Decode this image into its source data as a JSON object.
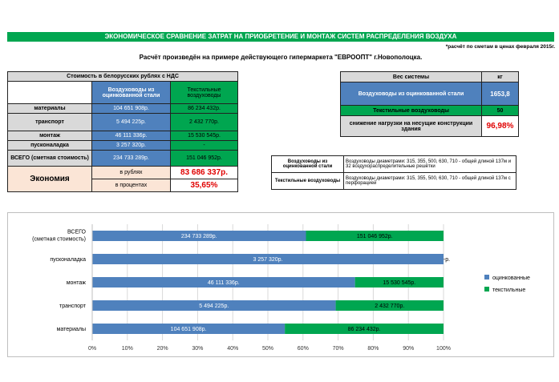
{
  "header": {
    "title": "ЭКОНОМИЧЕСКОЕ СРАВНЕНИЕ ЗАТРАТ НА ПРИОБРЕТЕНИЕ И МОНТАЖ СИСТЕМ РАСПРЕДЕЛЕНИЯ ВОЗДУХА",
    "note": "*расчёт по сметам в ценах февраля 2015г.",
    "subtitle": "Расчёт произведён на примере действующего гипермаркета \"ЕВРООПТ\" г.Новополоцка."
  },
  "cost_table": {
    "caption": "Стоимость в белорусских рублях с НДС",
    "col_galv": "Воздуховоды из оцинкованной стали",
    "col_text": "Текстильные воздуховоды",
    "rows": [
      {
        "label": "материалы",
        "galv": "104 651 908р.",
        "text": "86 234 432р."
      },
      {
        "label": "транспорт",
        "galv": "5 494 225р.",
        "text": "2 432 770р."
      },
      {
        "label": "монтаж",
        "galv": "46 111 336р.",
        "text": "15 530 545р."
      },
      {
        "label": "пусконаладка",
        "galv": "3 257 320р.",
        "text": "-"
      },
      {
        "label": "ВСЕГО (сметная стоимость)",
        "galv": "234 733 289р.",
        "text": "151 046 952р."
      }
    ],
    "economy_label": "Экономия",
    "rub_label": "в рублях",
    "rub_value": "83 686 337р.",
    "pct_label": "в процентах",
    "pct_value": "35,65%"
  },
  "weight_table": {
    "header": "Вес системы",
    "unit": "кг",
    "galv_label": "Воздуховоды из оцинкованной стали",
    "galv_value": "1653,8",
    "text_label": "Текстильные воздуховоды",
    "text_value": "50",
    "reduction_label": "снижение нагрузки на несущие конструкции здания",
    "reduction_value": "96,98%"
  },
  "desc_table": {
    "galv_label": "Воздуховоды из оцинкованной стали",
    "galv_desc": "Воздуховоды диаметрами: 315, 355, 500, 630, 710 - общей длиной 137м и 32 воздухораспределительные решётки",
    "text_label": "Текстильные воздуховоды",
    "text_desc": "Воздуховоды диаметрами: 315, 355, 500, 630, 710 - общей длиной 137м с перфорацией"
  },
  "colors": {
    "galv": "#4f81bd",
    "text": "#00a650",
    "red": "#e00000"
  },
  "chart_data": {
    "type": "bar",
    "orientation": "horizontal",
    "stacked": "percent",
    "categories": [
      "материалы",
      "транспорт",
      "монтаж",
      "пусконаладка",
      "ВСЕГО (сметная стоимость)"
    ],
    "series": [
      {
        "name": "оцинкованные",
        "values": [
          104651908,
          5494225,
          46111336,
          3257320,
          234733289
        ],
        "labels": [
          "104 651 908р.",
          "5 494 225р.",
          "46 111 336р.",
          "3 257 320р.",
          "234 733 289р."
        ]
      },
      {
        "name": "текстильные",
        "values": [
          86234432,
          2432770,
          15530545,
          0,
          151046952
        ],
        "labels": [
          "86 234 432р.",
          "2 432 770р.",
          "15 530 545р.",
          "-р.",
          "151 046 952р."
        ]
      }
    ],
    "xticks": [
      "0%",
      "10%",
      "20%",
      "30%",
      "40%",
      "50%",
      "60%",
      "70%",
      "80%",
      "90%",
      "100%"
    ],
    "xlim": [
      0,
      100
    ],
    "legend": "right"
  }
}
